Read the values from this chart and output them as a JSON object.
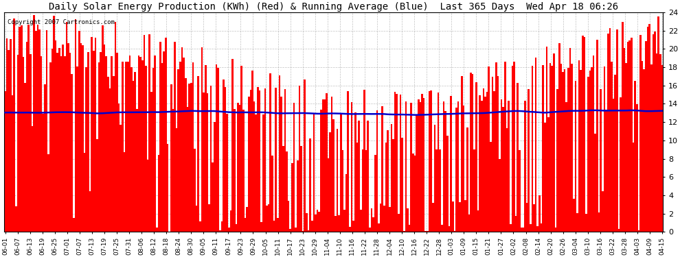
{
  "title": "Daily Solar Energy Production (KWh) (Red) & Running Average (Blue)  Last 365 Days  Wed Apr 18 06:26",
  "copyright_text": "Copyright 2007 Cartronics.com",
  "ylim": [
    0,
    24.0
  ],
  "yticks": [
    0.0,
    2.0,
    4.0,
    6.0,
    8.0,
    10.0,
    12.0,
    14.0,
    16.0,
    18.0,
    20.0,
    22.0,
    24.0
  ],
  "bar_color": "#ff0000",
  "line_color": "#0000cc",
  "bg_color": "#ffffff",
  "grid_color": "#999999",
  "title_fontsize": 10,
  "xlabel_dates": [
    "06-01",
    "06-07",
    "06-13",
    "06-19",
    "06-25",
    "07-01",
    "07-07",
    "07-13",
    "07-19",
    "07-25",
    "07-31",
    "08-06",
    "08-12",
    "08-18",
    "08-24",
    "08-30",
    "09-05",
    "09-11",
    "09-17",
    "09-23",
    "09-29",
    "10-05",
    "10-11",
    "10-17",
    "10-23",
    "10-29",
    "11-04",
    "11-10",
    "11-16",
    "11-22",
    "11-28",
    "12-04",
    "12-10",
    "12-16",
    "12-22",
    "12-28",
    "01-03",
    "01-09",
    "01-15",
    "01-21",
    "01-27",
    "02-02",
    "02-08",
    "02-14",
    "02-20",
    "02-26",
    "03-04",
    "03-10",
    "03-16",
    "03-22",
    "03-28",
    "04-03",
    "04-09",
    "04-15"
  ],
  "n_days": 365,
  "seed": 123,
  "avg_window": 365
}
